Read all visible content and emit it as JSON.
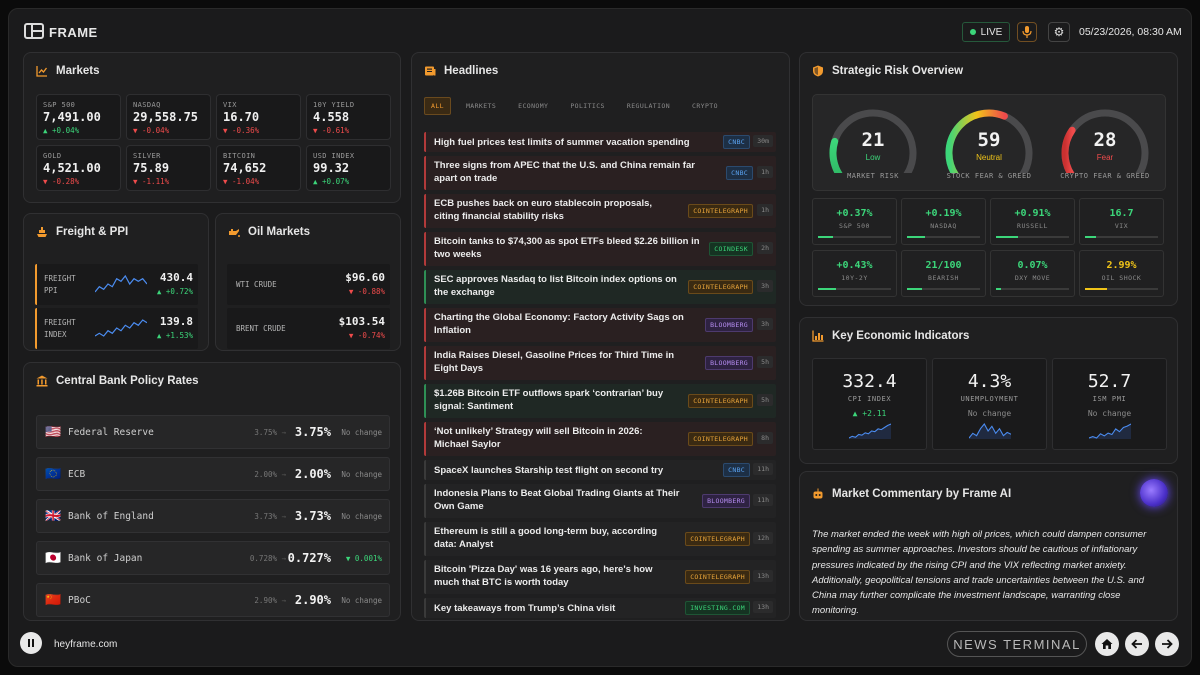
{
  "header": {
    "brand": "FRAME",
    "live_label": "LIVE",
    "datetime": "05/23/2026, 08:30 AM"
  },
  "markets": {
    "title": "Markets",
    "tiles": [
      {
        "label": "S&P 500",
        "value": "7,491.00",
        "change": "▲ +0.04%",
        "dir": "up"
      },
      {
        "label": "NASDAQ",
        "value": "29,558.75",
        "change": "▼ -0.04%",
        "dir": "down"
      },
      {
        "label": "VIX",
        "value": "16.70",
        "change": "▼ -0.36%",
        "dir": "down"
      },
      {
        "label": "10Y YIELD",
        "value": "4.558",
        "change": "▼ -0.61%",
        "dir": "down"
      },
      {
        "label": "GOLD",
        "value": "4,521.00",
        "change": "▼ -0.28%",
        "dir": "down"
      },
      {
        "label": "SILVER",
        "value": "75.89",
        "change": "▼ -1.11%",
        "dir": "down"
      },
      {
        "label": "BITCOIN",
        "value": "74,652",
        "change": "▼ -1.04%",
        "dir": "down"
      },
      {
        "label": "USD INDEX",
        "value": "99.32",
        "change": "▲ +0.07%",
        "dir": "up"
      }
    ]
  },
  "freight": {
    "title": "Freight & PPI",
    "rows": [
      {
        "label1": "FREIGHT",
        "label2": "PPI",
        "value": "430.4",
        "change": "▲ +0.72%"
      },
      {
        "label1": "FREIGHT",
        "label2": "INDEX",
        "value": "139.8",
        "change": "▲ +1.53%"
      }
    ]
  },
  "oil": {
    "title": "Oil Markets",
    "rows": [
      {
        "label": "WTI CRUDE",
        "value": "$96.60",
        "change": "▼ -0.88%"
      },
      {
        "label": "BRENT CRUDE",
        "value": "$103.54",
        "change": "▼ -0.74%"
      }
    ]
  },
  "central_banks": {
    "title": "Central Bank Policy Rates",
    "rows": [
      {
        "flag": "🇺🇸",
        "name": "Federal Reserve",
        "prev": "3.75%",
        "arrow": "→",
        "rate": "3.75%",
        "status": "No change",
        "dir": "flat"
      },
      {
        "flag": "🇪🇺",
        "name": "ECB",
        "prev": "2.00%",
        "arrow": "→",
        "rate": "2.00%",
        "status": "No change",
        "dir": "flat"
      },
      {
        "flag": "🇬🇧",
        "name": "Bank of England",
        "prev": "3.73%",
        "arrow": "→",
        "rate": "3.73%",
        "status": "No change",
        "dir": "flat"
      },
      {
        "flag": "🇯🇵",
        "name": "Bank of Japan",
        "prev": "0.728%",
        "arrow": "→",
        "rate": "0.727%",
        "status": "▼ 0.001%",
        "dir": "down"
      },
      {
        "flag": "🇨🇳",
        "name": "PBoC",
        "prev": "2.90%",
        "arrow": "→",
        "rate": "2.90%",
        "status": "No change",
        "dir": "flat"
      }
    ]
  },
  "headlines": {
    "title": "Headlines",
    "filters": [
      "ALL",
      "MARKETS",
      "ECONOMY",
      "POLITICS",
      "REGULATION",
      "CRYPTO"
    ],
    "items": [
      {
        "title": "High fuel prices test limits of summer vacation spending",
        "source": "CNBC",
        "age": "30m",
        "tone": "red",
        "src": "cnbc"
      },
      {
        "title": "Three signs from APEC that the U.S. and China remain far apart on trade",
        "source": "CNBC",
        "age": "1h",
        "tone": "red",
        "src": "cnbc"
      },
      {
        "title": "ECB pushes back on euro stablecoin proposals, citing financial stability risks",
        "source": "COINTELEGRAPH",
        "age": "1h",
        "tone": "red",
        "src": "ct"
      },
      {
        "title": "Bitcoin tanks to $74,300 as spot ETFs bleed $2.26 billion in two weeks",
        "source": "COINDESK",
        "age": "2h",
        "tone": "red",
        "src": "cd"
      },
      {
        "title": "SEC approves Nasdaq to list Bitcoin index options on the exchange",
        "source": "COINTELEGRAPH",
        "age": "3h",
        "tone": "green",
        "src": "ct"
      },
      {
        "title": "Charting the Global Economy: Factory Activity Sags on Inflation",
        "source": "BLOOMBERG",
        "age": "3h",
        "tone": "red",
        "src": "bb"
      },
      {
        "title": "India Raises Diesel, Gasoline Prices for Third Time in Eight Days",
        "source": "BLOOMBERG",
        "age": "5h",
        "tone": "red",
        "src": "bb"
      },
      {
        "title": "$1.26B Bitcoin ETF outflows spark ‘contrarian’ buy signal: Santiment",
        "source": "COINTELEGRAPH",
        "age": "5h",
        "tone": "green",
        "src": "ct"
      },
      {
        "title": "‘Not unlikely’ Strategy will sell Bitcoin in 2026: Michael Saylor",
        "source": "COINTELEGRAPH",
        "age": "8h",
        "tone": "red",
        "src": "ct"
      },
      {
        "title": "SpaceX launches Starship test flight on second try",
        "source": "CNBC",
        "age": "11h",
        "tone": "none",
        "src": "cnbc"
      },
      {
        "title": "Indonesia Plans to Beat Global Trading Giants at Their Own Game",
        "source": "BLOOMBERG",
        "age": "11h",
        "tone": "none",
        "src": "bb"
      },
      {
        "title": "Ethereum is still a good long-term buy, according data: Analyst",
        "source": "COINTELEGRAPH",
        "age": "12h",
        "tone": "none",
        "src": "ct"
      },
      {
        "title": "Bitcoin 'Pizza Day' was 16 years ago, here's how much that BTC is worth today",
        "source": "COINTELEGRAPH",
        "age": "13h",
        "tone": "none",
        "src": "ct"
      },
      {
        "title": "Key takeaways from Trump’s China visit",
        "source": "INVESTING.COM",
        "age": "13h",
        "tone": "none",
        "src": "inv"
      }
    ]
  },
  "risk": {
    "title": "Strategic Risk Overview",
    "gauges": [
      {
        "value": "21",
        "word": "Low",
        "label": "MARKET RISK",
        "color": "#3cd67a",
        "level": 0.21
      },
      {
        "value": "59",
        "word": "Neutral",
        "label": "STOCK FEAR & GREED",
        "color": "#f0c419",
        "level": 0.59
      },
      {
        "value": "28",
        "word": "Fear",
        "label": "CRYPTO FEAR & GREED",
        "color": "#ef4b4b",
        "level": 0.28
      }
    ],
    "cells": [
      {
        "value": "+0.37%",
        "label": "S&P 500",
        "color": "#3cd67a",
        "bar_color": "#3cd67a",
        "level": 0.2
      },
      {
        "value": "+0.19%",
        "label": "NASDAQ",
        "color": "#3cd67a",
        "bar_color": "#3cd67a",
        "level": 0.25
      },
      {
        "value": "+0.91%",
        "label": "RUSSELL",
        "color": "#3cd67a",
        "bar_color": "#3cd67a",
        "level": 0.3
      },
      {
        "value": "16.7",
        "label": "VIX",
        "color": "#3cd67a",
        "bar_color": "#3cd67a",
        "level": 0.15
      },
      {
        "value": "+0.43%",
        "label": "10Y-2Y",
        "color": "#3cd67a",
        "bar_color": "#3cd67a",
        "level": 0.25
      },
      {
        "value": "21/100",
        "label": "BEARISH",
        "color": "#3cd67a",
        "bar_color": "#3cd67a",
        "level": 0.21
      },
      {
        "value": "0.07%",
        "label": "DXY MOVE",
        "color": "#3cd67a",
        "bar_color": "#3cd67a",
        "level": 0.07
      },
      {
        "value": "2.99%",
        "label": "OIL SHOCK",
        "color": "#f0c419",
        "bar_color": "#f0c419",
        "level": 0.3
      }
    ]
  },
  "econ": {
    "title": "Key Economic Indicators",
    "cells": [
      {
        "value": "332.4",
        "label": "CPI INDEX",
        "change": "▲ +2.11",
        "dir": "up"
      },
      {
        "value": "4.3%",
        "label": "UNEMPLOYMENT",
        "change": "No change",
        "dir": "flat"
      },
      {
        "value": "52.7",
        "label": "ISM PMI",
        "change": "No change",
        "dir": "flat"
      }
    ]
  },
  "commentary": {
    "title": "Market Commentary by Frame AI",
    "text": "The market ended the week with high oil prices, which could dampen consumer spending as summer approaches. Investors should be cautious of inflationary pressures indicated by the rising CPI and the VIX reflecting market anxiety. Additionally, geopolitical tensions and trade uncertainties between the U.S. and China may further complicate the investment landscape, warranting close monitoring."
  },
  "footer": {
    "site": "heyframe.com",
    "terminal_label": "NEWS TERMINAL"
  },
  "colors": {
    "accent": "#f29a2e",
    "up": "#3cd67a",
    "down": "#ef4b4b",
    "neutral": "#f0c419"
  }
}
